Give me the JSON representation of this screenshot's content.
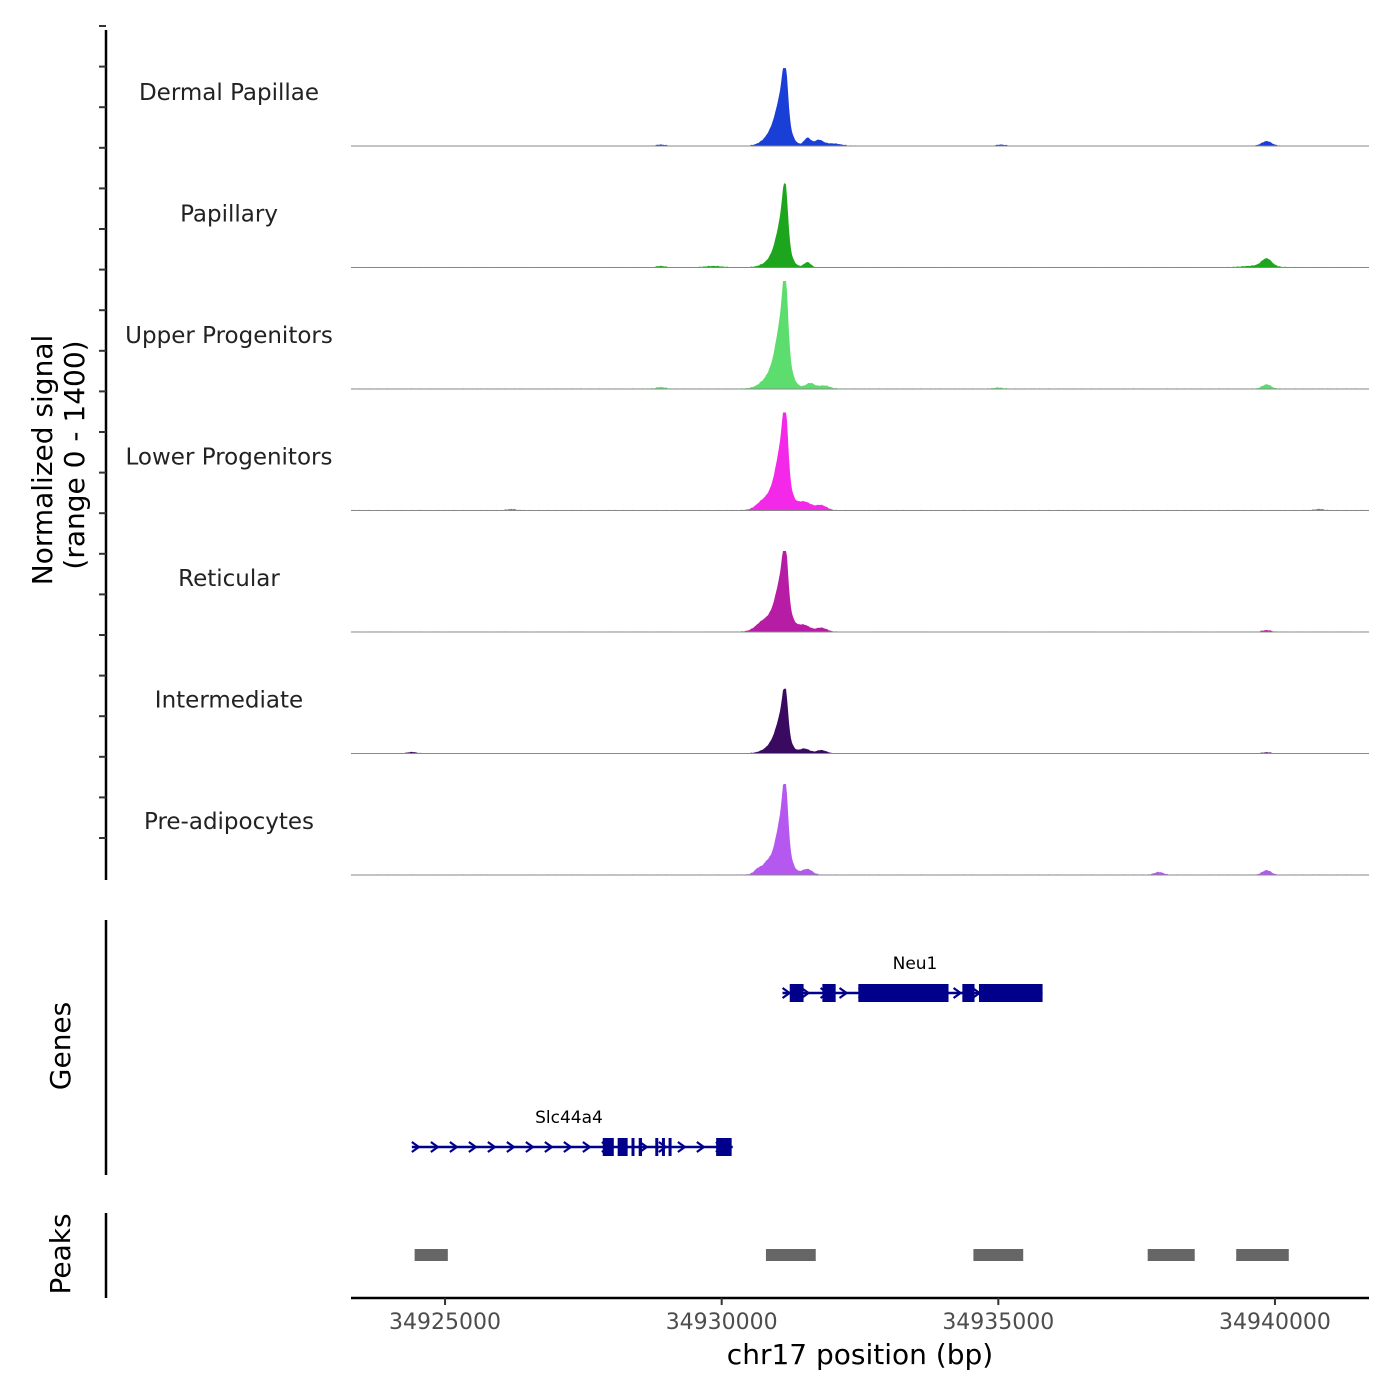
{
  "chart_data": {
    "type": "coverage-track",
    "chromosome": "chr17",
    "xlabel": "chr17 position (bp)",
    "xlim": [
      34923300,
      34941700
    ],
    "xticks": [
      34925000,
      34930000,
      34935000,
      34940000
    ],
    "xtick_labels": [
      "34925000",
      "34930000",
      "34935000",
      "34940000"
    ],
    "coverage": {
      "ylabel_line1": "Normalized signal",
      "ylabel_line2": "(range 0 - 1400)",
      "y_range": [
        0,
        1400
      ],
      "tracks": [
        {
          "name": "Dermal Papillae",
          "color": "#1a3fd6",
          "peak_value": 1010,
          "bumps": [
            [
              34931100,
              70,
              0.14
            ],
            [
              34931000,
              180,
              0.22
            ],
            [
              34931550,
              60,
              0.1
            ],
            [
              34931750,
              80,
              0.07
            ],
            [
              34932000,
              150,
              0.03
            ],
            [
              34939850,
              90,
              0.06
            ],
            [
              34928900,
              80,
              0.015
            ],
            [
              34935050,
              80,
              0.015
            ]
          ]
        },
        {
          "name": "Papillary",
          "color": "#1ea51e",
          "peak_value": 1090,
          "bumps": [
            [
              34931100,
              70,
              0.14
            ],
            [
              34931000,
              180,
              0.12
            ],
            [
              34931550,
              60,
              0.06
            ],
            [
              34929850,
              150,
              0.015
            ],
            [
              34939850,
              90,
              0.09
            ],
            [
              34939700,
              250,
              0.02
            ],
            [
              34928900,
              80,
              0.015
            ]
          ]
        },
        {
          "name": "Upper Progenitors",
          "color": "#5ddd6e",
          "peak_value": 1400,
          "bumps": [
            [
              34931100,
              80,
              0.15
            ],
            [
              34931000,
              200,
              0.18
            ],
            [
              34931600,
              80,
              0.05
            ],
            [
              34931850,
              100,
              0.03
            ],
            [
              34939850,
              80,
              0.04
            ],
            [
              34928900,
              80,
              0.015
            ],
            [
              34935000,
              80,
              0.01
            ]
          ]
        },
        {
          "name": "Lower Progenitors",
          "color": "#f428e8",
          "peak_value": 1270,
          "bumps": [
            [
              34931100,
              80,
              0.15
            ],
            [
              34931000,
              200,
              0.2
            ],
            [
              34931500,
              120,
              0.08
            ],
            [
              34931800,
              100,
              0.05
            ],
            [
              34930700,
              100,
              0.03
            ],
            [
              34926200,
              80,
              0.012
            ],
            [
              34940800,
              80,
              0.012
            ]
          ]
        },
        {
          "name": "Reticular",
          "color": "#b71ca5",
          "peak_value": 1050,
          "bumps": [
            [
              34931100,
              80,
              0.15
            ],
            [
              34931000,
              220,
              0.22
            ],
            [
              34931500,
              100,
              0.07
            ],
            [
              34931800,
              100,
              0.05
            ],
            [
              34930700,
              100,
              0.04
            ],
            [
              34939850,
              80,
              0.02
            ]
          ]
        },
        {
          "name": "Intermediate",
          "color": "#3a0a60",
          "peak_value": 840,
          "bumps": [
            [
              34931100,
              70,
              0.14
            ],
            [
              34931000,
              180,
              0.16
            ],
            [
              34931500,
              90,
              0.07
            ],
            [
              34931800,
              90,
              0.05
            ],
            [
              34924400,
              80,
              0.02
            ],
            [
              34939850,
              80,
              0.015
            ]
          ]
        },
        {
          "name": "Pre-adipocytes",
          "color": "#b458f0",
          "peak_value": 1180,
          "bumps": [
            [
              34931100,
              80,
              0.15
            ],
            [
              34931000,
              200,
              0.16
            ],
            [
              34931550,
              90,
              0.06
            ],
            [
              34930650,
              60,
              0.04
            ],
            [
              34930800,
              60,
              0.04
            ],
            [
              34937900,
              80,
              0.03
            ],
            [
              34939850,
              80,
              0.05
            ]
          ]
        }
      ]
    },
    "genes": {
      "ylabel": "Genes",
      "color": "#00008b",
      "items": [
        {
          "name": "Neu1",
          "strand": "+",
          "start": 34931100,
          "end": 34935800,
          "exons": [
            [
              34931230,
              34931480
            ],
            [
              34931820,
              34932060
            ],
            [
              34932470,
              34934100
            ],
            [
              34934350,
              34934570
            ],
            [
              34934650,
              34935800
            ]
          ]
        },
        {
          "name": "Slc44a4",
          "strand": "+",
          "start": 34924400,
          "end": 34930200,
          "exons": [
            [
              34927850,
              34928050
            ],
            [
              34928120,
              34928300
            ],
            [
              34928370,
              34928420
            ],
            [
              34928500,
              34928560
            ],
            [
              34928800,
              34928850
            ],
            [
              34928920,
              34928960
            ],
            [
              34929040,
              34929070
            ],
            [
              34929900,
              34930180
            ]
          ]
        }
      ]
    },
    "peaks": {
      "ylabel": "Peaks",
      "color": "#666666",
      "regions": [
        [
          34924450,
          34925050
        ],
        [
          34930800,
          34931700
        ],
        [
          34934550,
          34935450
        ],
        [
          34937700,
          34938550
        ],
        [
          34939300,
          34940250
        ]
      ]
    }
  }
}
